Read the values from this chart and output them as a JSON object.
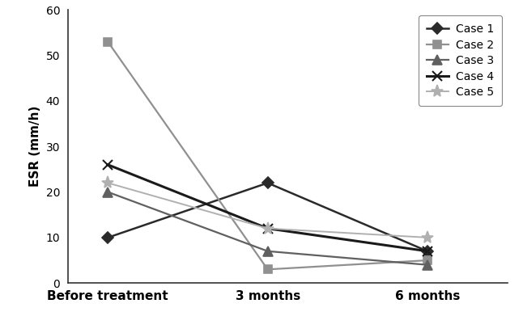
{
  "x_labels": [
    "Before treatment",
    "3 months",
    "6 months"
  ],
  "x_positions": [
    0,
    1,
    2
  ],
  "cases": [
    {
      "label": "Case 1",
      "values": [
        10,
        22,
        7
      ],
      "color": "#2a2a2a",
      "marker": "D",
      "markersize": 7,
      "linewidth": 1.8,
      "linestyle": "-",
      "markerfacecolor": "#2a2a2a"
    },
    {
      "label": "Case 2",
      "values": [
        53,
        3,
        5
      ],
      "color": "#909090",
      "marker": "s",
      "markersize": 7,
      "linewidth": 1.6,
      "linestyle": "-",
      "markerfacecolor": "#909090"
    },
    {
      "label": "Case 3",
      "values": [
        20,
        7,
        4
      ],
      "color": "#606060",
      "marker": "^",
      "markersize": 8,
      "linewidth": 1.6,
      "linestyle": "-",
      "markerfacecolor": "#606060"
    },
    {
      "label": "Case 4",
      "values": [
        26,
        12,
        7
      ],
      "color": "#1a1a1a",
      "marker": "x",
      "markersize": 9,
      "linewidth": 2.2,
      "linestyle": "-",
      "markerfacecolor": "#1a1a1a"
    },
    {
      "label": "Case 5",
      "values": [
        22,
        12,
        10
      ],
      "color": "#b0b0b0",
      "marker": "*",
      "markersize": 11,
      "linewidth": 1.4,
      "linestyle": "-",
      "markerfacecolor": "#b0b0b0"
    }
  ],
  "ylabel": "ESR (mm/h)",
  "ylim": [
    0,
    60
  ],
  "yticks": [
    0,
    10,
    20,
    30,
    40,
    50,
    60
  ],
  "xlim": [
    -0.25,
    2.5
  ],
  "legend_loc": "upper right",
  "background_color": "#ffffff"
}
